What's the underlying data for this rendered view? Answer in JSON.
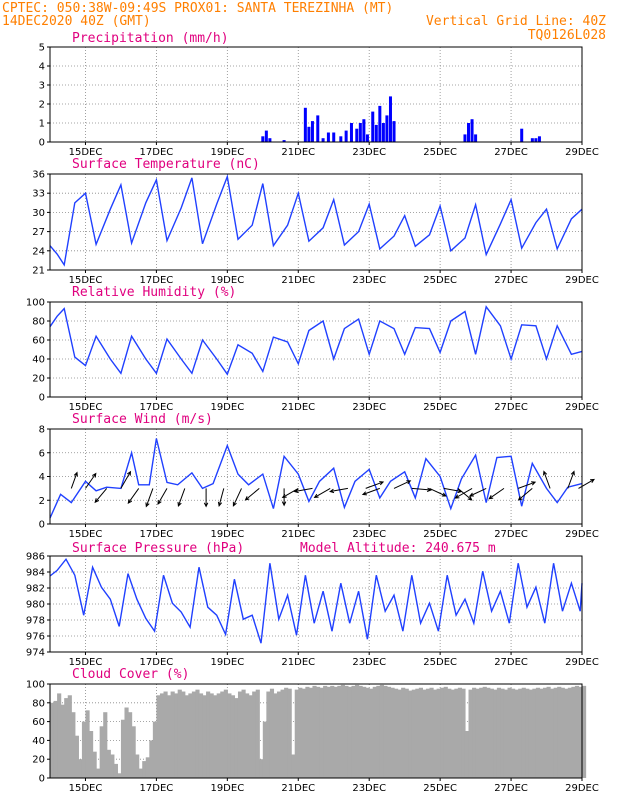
{
  "header": {
    "line1": "CPTEC:   050:38W-09:49S   PROX01: SANTA TEREZINHA (MT)",
    "line2_left": "14DEC2020 40Z (GMT)",
    "line2_right": "Vertical Grid Line: 40Z",
    "line3_right": "TQ0126L028"
  },
  "colors": {
    "header": "#ff7f00",
    "title": "#e0007f",
    "series": "#2040ff",
    "bars": "#0000ff",
    "cloud": "#a9a9a9",
    "arrows": "#000000"
  },
  "x_axis": {
    "start": "14DEC2020 00Z",
    "tick_labels": [
      "15DEC",
      "17DEC",
      "19DEC",
      "21DEC",
      "23DEC",
      "25DEC",
      "27DEC",
      "29DEC"
    ],
    "tick_days": [
      15,
      17,
      19,
      21,
      23,
      25,
      27,
      29
    ]
  },
  "chart_data": [
    {
      "type": "bar",
      "title": "Precipitation (mm/h)",
      "ylim": [
        0,
        5
      ],
      "yticks": [
        0,
        1,
        2,
        3,
        4,
        5
      ],
      "x": [
        20.0,
        20.1,
        20.2,
        20.6,
        21.2,
        21.3,
        21.4,
        21.55,
        21.7,
        21.85,
        22.0,
        22.2,
        22.35,
        22.5,
        22.65,
        22.75,
        22.85,
        22.95,
        23.1,
        23.2,
        23.3,
        23.4,
        23.5,
        23.6,
        23.7,
        25.7,
        25.8,
        25.9,
        26.0,
        27.3,
        27.6,
        27.7,
        27.8
      ],
      "values": [
        0.3,
        0.6,
        0.2,
        0.1,
        1.8,
        0.8,
        1.1,
        1.4,
        0.2,
        0.5,
        0.5,
        0.3,
        0.6,
        1.0,
        0.7,
        1.0,
        1.2,
        0.4,
        1.6,
        0.9,
        1.9,
        1.0,
        1.4,
        2.4,
        1.1,
        0.4,
        1.0,
        1.2,
        0.4,
        0.7,
        0.2,
        0.2,
        0.3
      ]
    },
    {
      "type": "line",
      "title": "Surface Temperature (nC)",
      "ylim": [
        21,
        36
      ],
      "yticks": [
        21,
        24,
        27,
        30,
        33,
        36
      ],
      "x": [
        14.0,
        14.2,
        14.4,
        14.7,
        15.0,
        15.3,
        15.7,
        16.0,
        16.3,
        16.7,
        17.0,
        17.3,
        17.7,
        18.0,
        18.3,
        18.7,
        19.0,
        19.3,
        19.7,
        20.0,
        20.3,
        20.7,
        21.0,
        21.3,
        21.7,
        22.0,
        22.3,
        22.7,
        23.0,
        23.3,
        23.7,
        24.0,
        24.3,
        24.7,
        25.0,
        25.3,
        25.7,
        26.0,
        26.3,
        26.7,
        27.0,
        27.3,
        27.7,
        28.0,
        28.3,
        28.7,
        29.0
      ],
      "values": [
        24.8,
        23.5,
        21.8,
        31.5,
        33.0,
        25.0,
        30.5,
        34.3,
        25.2,
        31.5,
        35.1,
        25.6,
        30.7,
        35.4,
        25.1,
        31.3,
        35.6,
        25.8,
        28.0,
        34.5,
        24.8,
        28.0,
        33.0,
        25.5,
        27.6,
        32.0,
        24.9,
        27.0,
        31.3,
        24.3,
        26.3,
        29.5,
        24.7,
        26.5,
        31.0,
        24.0,
        26.0,
        31.2,
        23.4,
        28.2,
        32.0,
        24.4,
        28.4,
        30.5,
        24.3,
        29.0,
        30.5
      ]
    },
    {
      "type": "line",
      "title": "Relative Humidity (%)",
      "ylim": [
        0,
        100
      ],
      "yticks": [
        0,
        20,
        40,
        60,
        80,
        100
      ],
      "x": [
        14.0,
        14.2,
        14.4,
        14.7,
        15.0,
        15.3,
        15.7,
        16.0,
        16.3,
        16.7,
        17.0,
        17.3,
        17.7,
        18.0,
        18.3,
        18.7,
        19.0,
        19.3,
        19.7,
        20.0,
        20.3,
        20.7,
        21.0,
        21.3,
        21.7,
        22.0,
        22.3,
        22.7,
        23.0,
        23.3,
        23.7,
        24.0,
        24.3,
        24.7,
        25.0,
        25.3,
        25.7,
        26.0,
        26.3,
        26.7,
        27.0,
        27.3,
        27.7,
        28.0,
        28.3,
        28.7,
        29.0
      ],
      "values": [
        74.0,
        85.0,
        93.0,
        42.0,
        33.0,
        64.0,
        40.0,
        25.0,
        64.0,
        40.0,
        25.0,
        61.0,
        40.0,
        25.0,
        60.0,
        40.0,
        24.0,
        55.0,
        46.0,
        27.0,
        63.0,
        58.0,
        35.0,
        70.0,
        80.0,
        40.0,
        72.0,
        82.0,
        45.0,
        80.0,
        72.0,
        45.0,
        73.0,
        72.0,
        47.0,
        80.0,
        90.0,
        45.0,
        95.0,
        75.0,
        40.0,
        76.0,
        75.0,
        40.0,
        75.0,
        45.0,
        48.0
      ]
    },
    {
      "type": "line",
      "title": "Surface Wind (m/s)",
      "ylim": [
        0,
        8
      ],
      "yticks": [
        0,
        2,
        4,
        6,
        8
      ],
      "x": [
        14.0,
        14.3,
        14.6,
        15.0,
        15.3,
        15.6,
        16.0,
        16.3,
        16.5,
        16.8,
        17.0,
        17.3,
        17.6,
        18.0,
        18.3,
        18.6,
        19.0,
        19.3,
        19.6,
        20.0,
        20.3,
        20.6,
        21.0,
        21.3,
        21.6,
        22.0,
        22.3,
        22.6,
        23.0,
        23.3,
        23.6,
        24.0,
        24.3,
        24.6,
        25.0,
        25.3,
        25.6,
        26.0,
        26.3,
        26.6,
        27.0,
        27.3,
        27.6,
        28.0,
        28.3,
        28.6,
        29.0
      ],
      "values": [
        0.5,
        2.5,
        1.8,
        3.6,
        2.8,
        3.1,
        3.0,
        6.0,
        3.3,
        3.3,
        7.2,
        3.5,
        3.3,
        4.3,
        3.0,
        3.4,
        6.6,
        4.2,
        3.3,
        4.2,
        1.3,
        5.7,
        4.2,
        1.9,
        3.6,
        4.7,
        1.4,
        3.6,
        4.6,
        2.2,
        3.6,
        4.4,
        2.2,
        5.5,
        4.0,
        1.3,
        3.8,
        5.8,
        1.8,
        5.6,
        5.7,
        1.5,
        5.1,
        3.0,
        1.8,
        3.1,
        3.4
      ],
      "arrows": [
        {
          "x": 14.6,
          "speed": 2.8,
          "dir_deg": 20
        },
        {
          "x": 15.0,
          "speed": 3.0,
          "dir_deg": 35
        },
        {
          "x": 15.6,
          "speed": 3.0,
          "dir_deg": 220
        },
        {
          "x": 16.0,
          "speed": 3.2,
          "dir_deg": 30
        },
        {
          "x": 16.5,
          "speed": 3.0,
          "dir_deg": 215
        },
        {
          "x": 16.9,
          "speed": 3.2,
          "dir_deg": 200
        },
        {
          "x": 17.3,
          "speed": 3.0,
          "dir_deg": 210
        },
        {
          "x": 17.8,
          "speed": 3.1,
          "dir_deg": 200
        },
        {
          "x": 18.4,
          "speed": 3.0,
          "dir_deg": 180
        },
        {
          "x": 18.9,
          "speed": 3.0,
          "dir_deg": 195
        },
        {
          "x": 19.4,
          "speed": 3.2,
          "dir_deg": 205
        },
        {
          "x": 19.9,
          "speed": 3.0,
          "dir_deg": 230
        },
        {
          "x": 20.6,
          "speed": 2.8,
          "dir_deg": 180
        },
        {
          "x": 21.0,
          "speed": 3.0,
          "dir_deg": 240
        },
        {
          "x": 21.4,
          "speed": 3.0,
          "dir_deg": 260
        },
        {
          "x": 21.9,
          "speed": 3.0,
          "dir_deg": 240
        },
        {
          "x": 22.4,
          "speed": 3.0,
          "dir_deg": 260
        },
        {
          "x": 22.9,
          "speed": 3.1,
          "dir_deg": 70
        },
        {
          "x": 23.3,
          "speed": 3.0,
          "dir_deg": 250
        },
        {
          "x": 23.7,
          "speed": 3.0,
          "dir_deg": 65
        },
        {
          "x": 24.2,
          "speed": 3.2,
          "dir_deg": 95
        },
        {
          "x": 24.7,
          "speed": 3.0,
          "dir_deg": 115
        },
        {
          "x": 25.1,
          "speed": 3.0,
          "dir_deg": 100
        },
        {
          "x": 25.5,
          "speed": 3.0,
          "dir_deg": 130
        },
        {
          "x": 25.9,
          "speed": 3.2,
          "dir_deg": 240
        },
        {
          "x": 26.3,
          "speed": 3.0,
          "dir_deg": 245
        },
        {
          "x": 26.8,
          "speed": 3.0,
          "dir_deg": 235
        },
        {
          "x": 27.2,
          "speed": 3.0,
          "dir_deg": 70
        },
        {
          "x": 27.6,
          "speed": 3.0,
          "dir_deg": 230
        },
        {
          "x": 28.1,
          "speed": 3.0,
          "dir_deg": 340
        },
        {
          "x": 28.6,
          "speed": 3.0,
          "dir_deg": 20
        },
        {
          "x": 28.9,
          "speed": 3.0,
          "dir_deg": 60
        }
      ]
    },
    {
      "type": "line",
      "title": "Surface Pressure (hPa)",
      "annotation": "Model Altitude: 240.675 m",
      "ylim": [
        974,
        986
      ],
      "yticks": [
        974,
        976,
        978,
        980,
        982,
        984,
        986
      ],
      "x": [
        14.0,
        14.2,
        14.45,
        14.7,
        14.95,
        15.2,
        15.45,
        15.7,
        15.95,
        16.2,
        16.45,
        16.7,
        16.95,
        17.2,
        17.45,
        17.7,
        17.95,
        18.2,
        18.45,
        18.7,
        18.95,
        19.2,
        19.45,
        19.7,
        19.95,
        20.2,
        20.45,
        20.7,
        20.95,
        21.2,
        21.45,
        21.7,
        21.95,
        22.2,
        22.45,
        22.7,
        22.95,
        23.2,
        23.45,
        23.7,
        23.95,
        24.2,
        24.45,
        24.7,
        24.95,
        25.2,
        25.45,
        25.7,
        25.95,
        26.2,
        26.45,
        26.7,
        26.95,
        27.2,
        27.45,
        27.7,
        27.95,
        28.2,
        28.45,
        28.7,
        28.95,
        29.0
      ],
      "values": [
        983.5,
        984.2,
        985.6,
        983.6,
        978.6,
        984.6,
        982.1,
        980.6,
        977.2,
        983.8,
        980.6,
        978.2,
        976.6,
        983.6,
        980.1,
        979.0,
        977.1,
        984.6,
        979.6,
        978.6,
        976.2,
        983.1,
        978.1,
        978.6,
        975.1,
        985.1,
        978.1,
        981.1,
        976.1,
        983.6,
        977.6,
        981.6,
        976.6,
        982.6,
        977.6,
        981.6,
        975.6,
        983.6,
        979.1,
        981.1,
        976.6,
        983.6,
        977.6,
        980.1,
        976.6,
        983.6,
        978.6,
        980.6,
        977.6,
        984.1,
        979.1,
        981.6,
        977.6,
        985.1,
        979.6,
        982.1,
        977.6,
        985.1,
        979.1,
        982.6,
        979.1,
        982.6
      ]
    },
    {
      "type": "area",
      "title": "Cloud Cover (%)",
      "ylim": [
        0,
        100
      ],
      "yticks": [
        0,
        20,
        40,
        60,
        80,
        100
      ],
      "x": [
        14.0,
        14.1,
        14.2,
        14.3,
        14.4,
        14.5,
        14.6,
        14.7,
        14.8,
        14.9,
        15.0,
        15.1,
        15.2,
        15.3,
        15.4,
        15.5,
        15.6,
        15.7,
        15.8,
        15.9,
        16.0,
        16.1,
        16.2,
        16.3,
        16.4,
        16.5,
        16.6,
        16.7,
        16.8,
        16.9,
        17.0,
        17.1,
        17.2,
        17.3,
        17.4,
        17.5,
        17.6,
        17.7,
        17.8,
        17.9,
        18.0,
        18.1,
        18.2,
        18.3,
        18.4,
        18.5,
        18.6,
        18.7,
        18.8,
        18.9,
        19.0,
        19.1,
        19.2,
        19.3,
        19.4,
        19.5,
        19.6,
        19.7,
        19.8,
        19.9,
        20.0,
        20.1,
        20.2,
        20.3,
        20.4,
        20.5,
        20.6,
        20.7,
        20.8,
        20.9,
        21.0,
        21.1,
        21.2,
        21.3,
        21.4,
        21.5,
        21.6,
        21.7,
        21.8,
        21.9,
        22.0,
        22.1,
        22.2,
        22.3,
        22.4,
        22.5,
        22.6,
        22.7,
        22.8,
        22.9,
        23.0,
        23.1,
        23.2,
        23.3,
        23.4,
        23.5,
        23.6,
        23.7,
        23.8,
        23.9,
        24.0,
        24.1,
        24.2,
        24.3,
        24.4,
        24.5,
        24.6,
        24.7,
        24.8,
        24.9,
        25.0,
        25.1,
        25.2,
        25.3,
        25.4,
        25.5,
        25.6,
        25.7,
        25.8,
        25.9,
        26.0,
        26.1,
        26.2,
        26.3,
        26.4,
        26.5,
        26.6,
        26.7,
        26.8,
        26.9,
        27.0,
        27.1,
        27.2,
        27.3,
        27.4,
        27.5,
        27.6,
        27.7,
        27.8,
        27.9,
        28.0,
        28.1,
        28.2,
        28.3,
        28.4,
        28.5,
        28.6,
        28.7,
        28.8,
        28.9,
        29.0
      ],
      "values": [
        80,
        82,
        90,
        78,
        85,
        88,
        70,
        45,
        20,
        60,
        72,
        50,
        28,
        10,
        55,
        70,
        30,
        25,
        15,
        5,
        62,
        75,
        70,
        55,
        25,
        10,
        18,
        22,
        40,
        60,
        88,
        90,
        92,
        88,
        92,
        90,
        94,
        92,
        88,
        90,
        92,
        94,
        90,
        88,
        92,
        90,
        88,
        90,
        92,
        94,
        90,
        88,
        85,
        92,
        94,
        90,
        88,
        92,
        94,
        20,
        60,
        92,
        95,
        90,
        92,
        94,
        96,
        95,
        25,
        94,
        96,
        95,
        97,
        96,
        98,
        97,
        96,
        98,
        97,
        98,
        97,
        98,
        99,
        98,
        97,
        98,
        99,
        98,
        97,
        96,
        95,
        97,
        98,
        99,
        98,
        97,
        96,
        95,
        94,
        96,
        95,
        93,
        94,
        95,
        96,
        94,
        95,
        96,
        94,
        95,
        96,
        97,
        95,
        94,
        95,
        96,
        95,
        50,
        94,
        96,
        95,
        96,
        97,
        96,
        95,
        94,
        96,
        95,
        94,
        96,
        95,
        94,
        95,
        96,
        95,
        94,
        95,
        96,
        95,
        96,
        97,
        95,
        96,
        97,
        96,
        95,
        96,
        97,
        98,
        97,
        98
      ]
    }
  ]
}
